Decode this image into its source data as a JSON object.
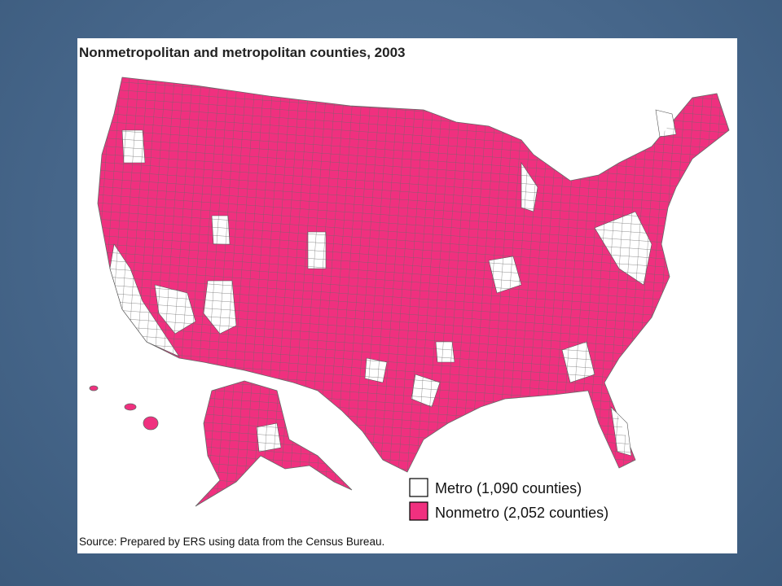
{
  "title": "Nonmetropolitan and metropolitan counties, 2003",
  "legend": [
    {
      "label": "Metro (1,090 counties)",
      "color": "#ffffff"
    },
    {
      "label": "Nonmetro (2,052 counties)",
      "color": "#f0307f"
    }
  ],
  "source": "Source: Prepared by ERS using data from the Census Bureau."
}
